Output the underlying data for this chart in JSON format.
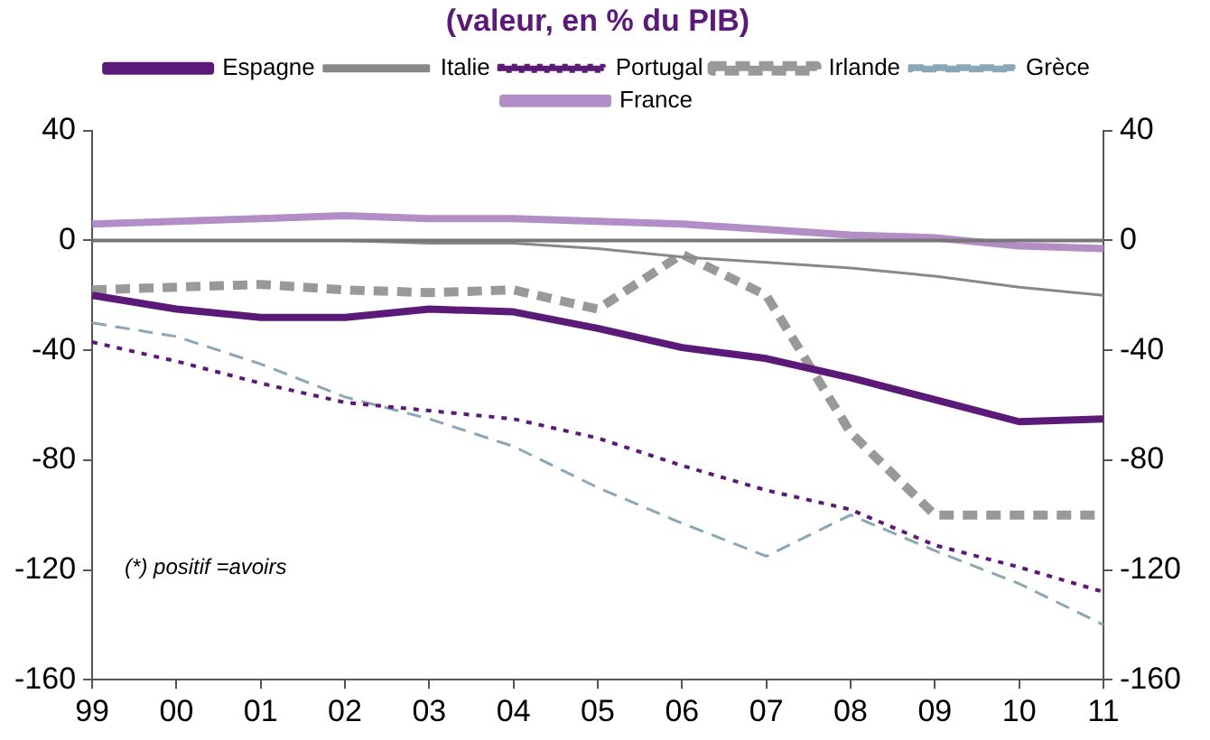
{
  "chart_data": {
    "type": "line",
    "title": "(valeur, en % du PIB)",
    "categories": [
      "99",
      "00",
      "01",
      "02",
      "03",
      "04",
      "05",
      "06",
      "07",
      "08",
      "09",
      "10",
      "11"
    ],
    "series": [
      {
        "name": "Espagne",
        "color": "#5b1a77",
        "line_style": "solid",
        "values": [
          -20,
          -25,
          -28,
          -28,
          -25,
          -26,
          -32,
          -39,
          -43,
          -50,
          -58,
          -66,
          -65
        ]
      },
      {
        "name": "Italie",
        "color": "#888888",
        "line_style": "solid",
        "values": [
          0,
          0,
          0,
          0,
          -1,
          -1,
          -3,
          -6,
          -8,
          -10,
          -13,
          -17,
          -20
        ]
      },
      {
        "name": "Portugal",
        "color": "#5b1a77",
        "line_style": "dotted",
        "values": [
          -37,
          -44,
          -52,
          -59,
          -62,
          -65,
          -72,
          -82,
          -91,
          -98,
          -111,
          -119,
          -128
        ]
      },
      {
        "name": "Irlande",
        "color": "#999999",
        "line_style": "dashed",
        "values": [
          -18,
          -17,
          -16,
          -18,
          -19,
          -18,
          -25,
          -5,
          -20,
          -70,
          -100,
          -100,
          -100
        ]
      },
      {
        "name": "Grèce",
        "color": "#8aa7b5",
        "line_style": "dashed",
        "values": [
          -30,
          -35,
          -45,
          -57,
          -65,
          -75,
          -90,
          -103,
          -115,
          -100,
          -113,
          -125,
          -140
        ]
      },
      {
        "name": "France",
        "color": "#b28dc6",
        "line_style": "solid",
        "values": [
          6,
          7,
          8,
          9,
          8,
          8,
          7,
          6,
          4,
          2,
          1,
          -2,
          -3
        ]
      }
    ],
    "ylim": [
      -160,
      40
    ],
    "yticks": [
      -160,
      -120,
      -80,
      -40,
      0,
      40
    ],
    "y2lim": [
      -160,
      40
    ],
    "y2ticks": [
      -160,
      -120,
      -80,
      -40,
      0,
      40
    ],
    "ref_lines": [
      {
        "axis": "y",
        "value": 0,
        "color": "#777777"
      }
    ],
    "annotations": [
      "(*) positif =avoirs"
    ],
    "grid": false,
    "legend": "top",
    "marker": "none"
  }
}
